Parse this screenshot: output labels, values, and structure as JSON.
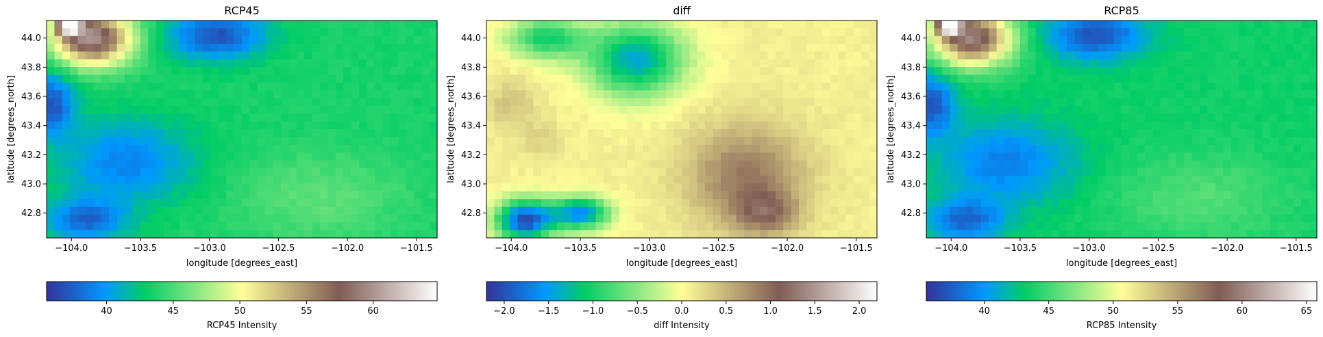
{
  "chart_data": [
    {
      "type": "heatmap",
      "title": "RCP45",
      "xlabel": "longitude [degrees_east]",
      "ylabel": "latitude [degrees_north]",
      "xlim": [
        -104.18,
        -101.35
      ],
      "ylim": [
        42.63,
        44.12
      ],
      "xticks": [
        -104.0,
        -103.5,
        -103.0,
        -102.5,
        -102.0,
        -101.5
      ],
      "xtick_labels": [
        "−104.0",
        "−103.5",
        "−103.0",
        "−102.5",
        "−102.0",
        "−101.5"
      ],
      "yticks": [
        42.8,
        43.0,
        43.2,
        43.4,
        43.6,
        43.8,
        44.0
      ],
      "ytick_labels": [
        "42.8",
        "43.0",
        "43.2",
        "43.4",
        "43.6",
        "43.8",
        "44.0"
      ],
      "colorbar": {
        "label": "RCP45 Intensity",
        "range": [
          35.5,
          64.8
        ],
        "ticks": [
          40,
          45,
          50,
          55,
          60
        ],
        "tick_labels": [
          "40",
          "45",
          "50",
          "55",
          "60"
        ]
      },
      "colormap": "terrain",
      "grid": false,
      "features": [
        {
          "lon": -103.85,
          "lat": 44.0,
          "value": 60,
          "sigma_lon": 0.2,
          "sigma_lat": 0.13
        },
        {
          "lon": -104.02,
          "lat": 44.1,
          "value": 64,
          "sigma_lon": 0.06,
          "sigma_lat": 0.05
        },
        {
          "lon": -102.95,
          "lat": 44.02,
          "value": 37,
          "sigma_lon": 0.25,
          "sigma_lat": 0.12
        },
        {
          "lon": -104.15,
          "lat": 43.55,
          "value": 37,
          "sigma_lon": 0.12,
          "sigma_lat": 0.15
        },
        {
          "lon": -103.6,
          "lat": 43.15,
          "value": 39,
          "sigma_lon": 0.35,
          "sigma_lat": 0.2
        },
        {
          "lon": -103.9,
          "lat": 42.75,
          "value": 38,
          "sigma_lon": 0.2,
          "sigma_lat": 0.1
        },
        {
          "lon": -102.2,
          "lat": 42.9,
          "value": 45.5,
          "sigma_lon": 0.45,
          "sigma_lat": 0.22
        }
      ]
    },
    {
      "type": "heatmap",
      "title": "diff",
      "xlabel": "longitude [degrees_east]",
      "ylabel": "latitude [degrees_north]",
      "xlim": [
        -104.18,
        -101.35
      ],
      "ylim": [
        42.63,
        44.12
      ],
      "xticks": [
        -104.0,
        -103.5,
        -103.0,
        -102.5,
        -102.0,
        -101.5
      ],
      "xtick_labels": [
        "−104.0",
        "−103.5",
        "−103.0",
        "−102.5",
        "−102.0",
        "−101.5"
      ],
      "yticks": [
        42.8,
        43.0,
        43.2,
        43.4,
        43.6,
        43.8,
        44.0
      ],
      "ytick_labels": [
        "42.8",
        "43.0",
        "43.2",
        "43.4",
        "43.6",
        "43.8",
        "44.0"
      ],
      "colorbar": {
        "label": "diff Intensity",
        "range": [
          -2.2,
          2.2
        ],
        "ticks": [
          -2.0,
          -1.5,
          -1.0,
          -0.5,
          0.0,
          0.5,
          1.0,
          1.5,
          2.0
        ],
        "tick_labels": [
          "−2.0",
          "−1.5",
          "−1.0",
          "−0.5",
          "0.0",
          "0.5",
          "1.0",
          "1.5",
          "2.0"
        ]
      },
      "colormap": "terrain",
      "grid": false,
      "features": [
        {
          "lon": -102.3,
          "lat": 43.05,
          "value": 0.9,
          "sigma_lon": 0.3,
          "sigma_lat": 0.25
        },
        {
          "lon": -102.15,
          "lat": 42.8,
          "value": 0.8,
          "sigma_lon": 0.15,
          "sigma_lat": 0.1
        },
        {
          "lon": -103.1,
          "lat": 43.85,
          "value": -1.4,
          "sigma_lon": 0.25,
          "sigma_lat": 0.18
        },
        {
          "lon": -103.75,
          "lat": 44.0,
          "value": -1.0,
          "sigma_lon": 0.2,
          "sigma_lat": 0.1
        },
        {
          "lon": -103.9,
          "lat": 42.75,
          "value": -2.0,
          "sigma_lon": 0.15,
          "sigma_lat": 0.1
        },
        {
          "lon": -103.5,
          "lat": 42.8,
          "value": -1.6,
          "sigma_lon": 0.15,
          "sigma_lat": 0.08
        },
        {
          "lon": -104.0,
          "lat": 43.55,
          "value": 0.4,
          "sigma_lon": 0.12,
          "sigma_lat": 0.12
        },
        {
          "lon": -103.78,
          "lat": 43.3,
          "value": 0.3,
          "sigma_lon": 0.1,
          "sigma_lat": 0.1
        }
      ]
    },
    {
      "type": "heatmap",
      "title": "RCP85",
      "xlabel": "longitude [degrees_east]",
      "ylabel": "latitude [degrees_north]",
      "xlim": [
        -104.18,
        -101.35
      ],
      "ylim": [
        42.63,
        44.12
      ],
      "xticks": [
        -104.0,
        -103.5,
        -103.0,
        -102.5,
        -102.0,
        -101.5
      ],
      "xtick_labels": [
        "−104.0",
        "−103.5",
        "−103.0",
        "−102.5",
        "−102.0",
        "−101.5"
      ],
      "yticks": [
        42.8,
        43.0,
        43.2,
        43.4,
        43.6,
        43.8,
        44.0
      ],
      "ytick_labels": [
        "42.8",
        "43.0",
        "43.2",
        "43.4",
        "43.6",
        "43.8",
        "44.0"
      ],
      "colorbar": {
        "label": "RCP85 Intensity",
        "range": [
          35.5,
          65.8
        ],
        "ticks": [
          40,
          45,
          50,
          55,
          60,
          65
        ],
        "tick_labels": [
          "40",
          "45",
          "50",
          "55",
          "60",
          "65"
        ]
      },
      "colormap": "terrain",
      "grid": false,
      "features": [
        {
          "lon": -103.85,
          "lat": 44.0,
          "value": 60,
          "sigma_lon": 0.2,
          "sigma_lat": 0.13
        },
        {
          "lon": -104.02,
          "lat": 44.1,
          "value": 65,
          "sigma_lon": 0.06,
          "sigma_lat": 0.05
        },
        {
          "lon": -102.95,
          "lat": 44.02,
          "value": 37,
          "sigma_lon": 0.25,
          "sigma_lat": 0.12
        },
        {
          "lon": -104.15,
          "lat": 43.55,
          "value": 37,
          "sigma_lon": 0.12,
          "sigma_lat": 0.15
        },
        {
          "lon": -103.6,
          "lat": 43.15,
          "value": 39,
          "sigma_lon": 0.35,
          "sigma_lat": 0.2
        },
        {
          "lon": -103.9,
          "lat": 42.75,
          "value": 38,
          "sigma_lon": 0.2,
          "sigma_lat": 0.1
        },
        {
          "lon": -102.2,
          "lat": 42.9,
          "value": 45.5,
          "sigma_lon": 0.45,
          "sigma_lat": 0.22
        }
      ]
    }
  ]
}
